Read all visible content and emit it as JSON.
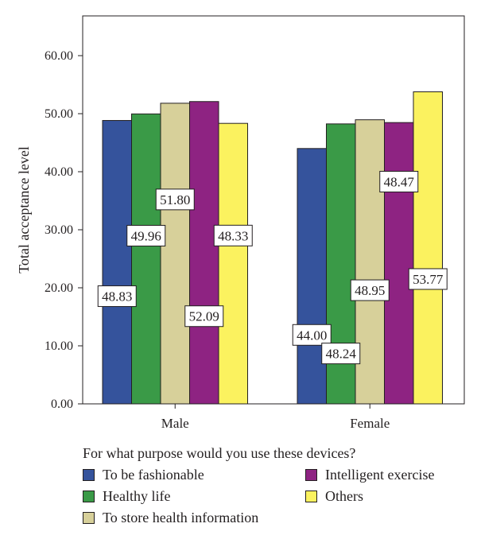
{
  "chart_data": {
    "type": "bar",
    "ylabel": "Total acceptance level",
    "ylim": [
      0,
      65
    ],
    "yticks": [
      "0.00",
      "10.00",
      "20.00",
      "30.00",
      "40.00",
      "50.00",
      "60.00"
    ],
    "categories": [
      "Male",
      "Female"
    ],
    "series": [
      {
        "name": "To be fashionable",
        "color": "#35539c",
        "values": [
          48.83,
          44.0
        ],
        "labels": [
          "48.83",
          "44.00"
        ]
      },
      {
        "name": "Healthy life",
        "color": "#3a9a47",
        "values": [
          49.96,
          48.24
        ],
        "labels": [
          "49.96",
          "48.24"
        ]
      },
      {
        "name": "To store health information",
        "color": "#d7d09a",
        "values": [
          51.8,
          48.95
        ],
        "labels": [
          "51.80",
          "48.95"
        ]
      },
      {
        "name": "Intelligent exercise",
        "color": "#8e2382",
        "values": [
          52.09,
          48.47
        ],
        "labels": [
          "52.09",
          "48.47"
        ]
      },
      {
        "name": "Others",
        "color": "#fbf25f",
        "values": [
          48.33,
          53.77
        ],
        "labels": [
          "48.33",
          "53.77"
        ]
      }
    ],
    "legend_title": "For what purpose would you use these devices?",
    "legend_position": "bottom",
    "grid": false
  }
}
